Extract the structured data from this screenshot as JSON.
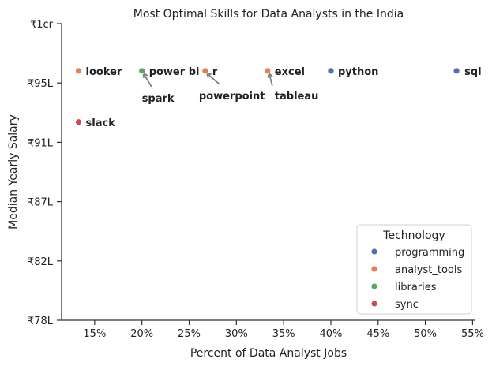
{
  "chart_data": {
    "type": "scatter",
    "title": "Most Optimal Skills for Data Analysts in the India",
    "xlabel": "Percent of Data Analyst Jobs",
    "ylabel": "Median Yearly Salary",
    "xlim": [
      11.5,
      55.3
    ],
    "ylim": [
      7800000,
      10000000
    ],
    "x_ticks": [
      15,
      20,
      25,
      30,
      35,
      40,
      45,
      50,
      55
    ],
    "x_tick_labels": [
      "15%",
      "20%",
      "25%",
      "30%",
      "35%",
      "40%",
      "45%",
      "50%",
      "55%"
    ],
    "y_ticks": [
      7800000,
      8240000,
      8680000,
      9120000,
      9560000,
      10000000
    ],
    "y_tick_labels": [
      "₹78L",
      "₹82L",
      "₹87L",
      "₹91L",
      "₹95L",
      "₹1cr"
    ],
    "grid": false,
    "legend": {
      "title": "Technology",
      "placement": "lower-right",
      "entries": [
        {
          "name": "programming",
          "color": "#4c72b0"
        },
        {
          "name": "analyst_tools",
          "color": "#dd8452"
        },
        {
          "name": "libraries",
          "color": "#55a868"
        },
        {
          "name": "sync",
          "color": "#c44e52"
        }
      ]
    },
    "points": [
      {
        "skill": "sql",
        "x": 53.3,
        "y": 9650000,
        "category": "programming"
      },
      {
        "skill": "python",
        "x": 40.0,
        "y": 9650000,
        "category": "programming"
      },
      {
        "skill": "excel",
        "x": 33.3,
        "y": 9650000,
        "category": "analyst_tools"
      },
      {
        "skill": "tableau",
        "x": 33.3,
        "y": 9650000,
        "category": "analyst_tools"
      },
      {
        "skill": "r",
        "x": 26.7,
        "y": 9650000,
        "category": "analyst_tools"
      },
      {
        "skill": "powerpoint",
        "x": 26.7,
        "y": 9650000,
        "category": "analyst_tools"
      },
      {
        "skill": "power bi",
        "x": 20.0,
        "y": 9650000,
        "category": "libraries"
      },
      {
        "skill": "spark",
        "x": 20.0,
        "y": 9650000,
        "category": "libraries"
      },
      {
        "skill": "looker",
        "x": 13.3,
        "y": 9650000,
        "category": "analyst_tools"
      },
      {
        "skill": "slack",
        "x": 13.3,
        "y": 9270000,
        "category": "sync"
      }
    ]
  }
}
